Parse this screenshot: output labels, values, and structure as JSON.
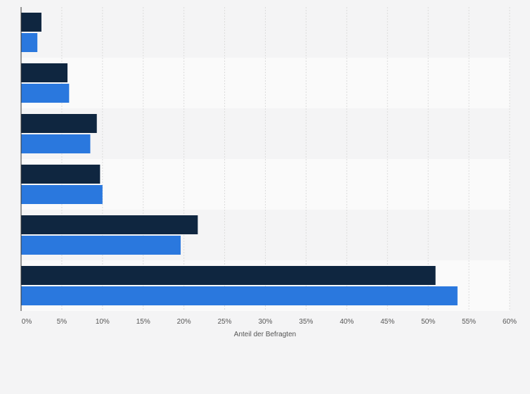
{
  "chart_data": {
    "type": "bar",
    "orientation": "horizontal",
    "title": "",
    "xlabel": "Anteil der Befragten",
    "ylabel": "",
    "xlim": [
      0,
      60
    ],
    "grid": true,
    "legend": "none",
    "x_ticks": [
      "0%",
      "5%",
      "10%",
      "15%",
      "20%",
      "25%",
      "30%",
      "35%",
      "40%",
      "45%",
      "50%",
      "55%",
      "60%"
    ],
    "categories": [
      "",
      "",
      "",
      "",
      "",
      ""
    ],
    "series": [
      {
        "values": [
          2.5,
          5.7,
          9.3,
          9.7,
          21.7,
          50.9
        ],
        "color": "#0f2640"
      },
      {
        "values": [
          2.0,
          5.9,
          8.5,
          10.0,
          19.6,
          53.6
        ],
        "color": "#2a78de"
      }
    ],
    "colors": {
      "band_light": "#f4f4f5",
      "band_white": "#fafafa",
      "grid": "#dcdcdc",
      "axis": "#333333"
    }
  }
}
